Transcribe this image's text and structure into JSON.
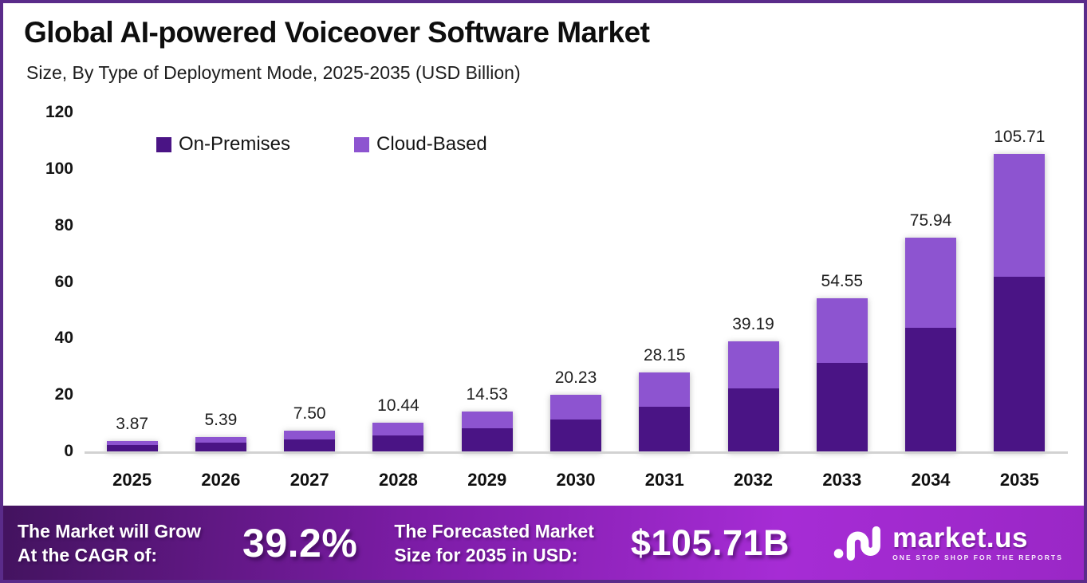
{
  "header": {
    "title": "Global AI-powered Voiceover Software Market",
    "subtitle": "Size, By Type of Deployment Mode, 2025-2035 (USD Billion)"
  },
  "chart_data": {
    "type": "bar",
    "stacked": true,
    "title": "Global AI-powered Voiceover Software Market Size, By Type of Deployment Mode, 2025-2035 (USD Billion)",
    "categories": [
      "2025",
      "2026",
      "2027",
      "2028",
      "2029",
      "2030",
      "2031",
      "2032",
      "2033",
      "2034",
      "2035"
    ],
    "series": [
      {
        "name": "On-Premises",
        "color": "#4a1485",
        "values": [
          2.4,
          3.3,
          4.45,
          6.0,
          8.45,
          11.55,
          16.15,
          22.7,
          31.55,
          44.1,
          62.0
        ]
      },
      {
        "name": "Cloud-Based",
        "color": "#8d54d0",
        "values": [
          1.47,
          2.09,
          3.05,
          4.44,
          6.08,
          8.68,
          12.0,
          16.49,
          23.0,
          31.84,
          43.71
        ]
      }
    ],
    "totals": [
      3.87,
      5.39,
      7.5,
      10.44,
      14.53,
      20.23,
      28.15,
      39.19,
      54.55,
      75.94,
      105.71
    ],
    "total_labels": [
      "3.87",
      "5.39",
      "7.50",
      "10.44",
      "14.53",
      "20.23",
      "28.15",
      "39.19",
      "54.55",
      "75.94",
      "105.71"
    ],
    "xlabel": "",
    "ylabel": "",
    "ylim": [
      0,
      120
    ],
    "yticks": [
      0,
      20,
      40,
      60,
      80,
      100,
      120
    ],
    "grid": false,
    "legend_position": "top-left-inside"
  },
  "banner": {
    "cagr_line1": "The Market will Grow",
    "cagr_line2": "At the CAGR of:",
    "cagr_value": "39.2%",
    "forecast_line1": "The Forecasted Market",
    "forecast_line2": "Size for 2035 in USD:",
    "forecast_value": "$105.71B",
    "logo_text": "market.us",
    "logo_tagline": "ONE STOP SHOP FOR THE REPORTS",
    "gradient": [
      "#43135f",
      "#7c1ca6",
      "#a62cd5",
      "#9a27c6"
    ]
  },
  "colors": {
    "frame_border": "#5a2b8a",
    "baseline": "#d2d2d2",
    "label_text": "#1f1f1f"
  }
}
